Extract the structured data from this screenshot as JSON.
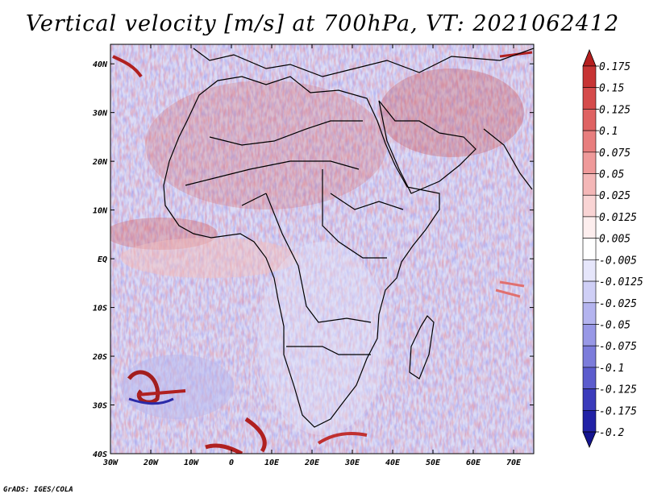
{
  "title": "Vertical velocity [m/s] at 700hPa, VT: 2021062412",
  "credit": "GrADS: IGES/COLA",
  "map": {
    "lat_ticks": [
      "40N",
      "30N",
      "20N",
      "10N",
      "EQ",
      "10S",
      "20S",
      "30S",
      "40S"
    ],
    "lon_ticks": [
      "30W",
      "20W",
      "10W",
      "0",
      "10E",
      "20E",
      "30E",
      "40E",
      "50E",
      "60E",
      "70E"
    ],
    "lon_range": [
      -30,
      75
    ],
    "lat_range": [
      -40,
      44
    ]
  },
  "colorbar": {
    "labels": [
      "0.175",
      "0.15",
      "0.125",
      "0.1",
      "0.075",
      "0.05",
      "0.025",
      "0.0125",
      "0.005",
      "-0.005",
      "-0.0125",
      "-0.025",
      "-0.05",
      "-0.075",
      "-0.1",
      "-0.125",
      "-0.175",
      "-0.2"
    ],
    "colors": [
      "#b51f1f",
      "#c73434",
      "#d54b4b",
      "#df6363",
      "#e87e7e",
      "#ef9a9a",
      "#f4b7b7",
      "#f9d4d4",
      "#fdeeee",
      "#ffffff",
      "#e6e6fb",
      "#cfcff6",
      "#b4b4ef",
      "#9898e6",
      "#7c7cdb",
      "#5c5ccd",
      "#3b3bbb",
      "#2222a6",
      "#14148f"
    ]
  }
}
